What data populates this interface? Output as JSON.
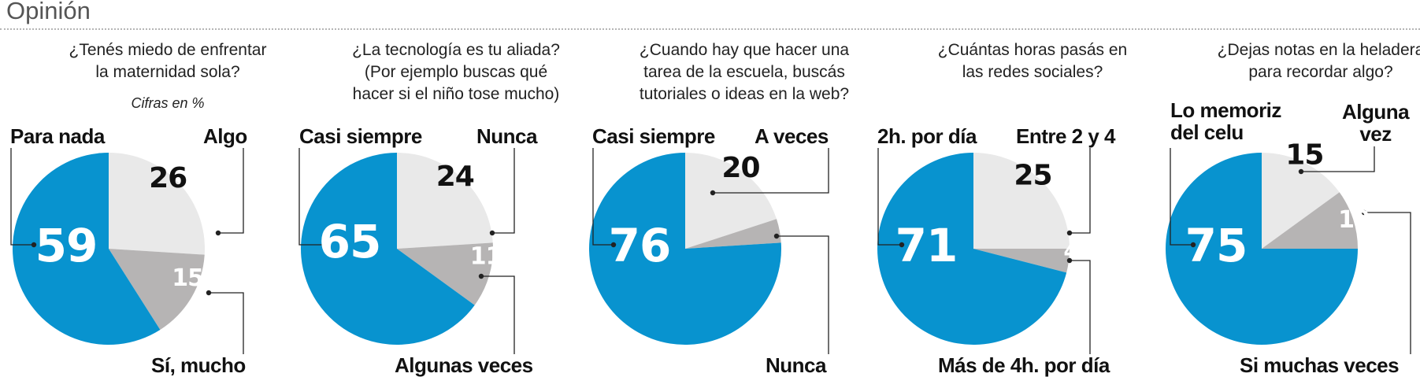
{
  "section_title": "Opinión",
  "colors": {
    "blue": "#0893cf",
    "light": "#e9e9e9",
    "mid": "#b6b4b4",
    "line": "#222222"
  },
  "chart_data": [
    {
      "type": "pie",
      "title_lines": [
        "¿Tenés miedo de enfrentar",
        "la maternidad sola?"
      ],
      "note": "Cifras en %",
      "slices": [
        {
          "label": "Para nada",
          "value": 59,
          "color": "blue"
        },
        {
          "label": "Algo",
          "value": 26,
          "color": "light"
        },
        {
          "label": "Sí, mucho",
          "value": 15,
          "color": "mid"
        }
      ]
    },
    {
      "type": "pie",
      "title_lines": [
        "¿La tecnología es tu aliada?",
        "(Por ejemplo buscas qué",
        "hacer si el niño tose mucho)"
      ],
      "slices": [
        {
          "label": "Casi siempre",
          "value": 65,
          "color": "blue"
        },
        {
          "label": "Nunca",
          "value": 24,
          "color": "light"
        },
        {
          "label": "Algunas veces",
          "value": 11,
          "color": "mid"
        }
      ]
    },
    {
      "type": "pie",
      "title_lines": [
        "¿Cuando hay que hacer una",
        "tarea de la escuela, buscás",
        "tutoriales o ideas en la web?"
      ],
      "slices": [
        {
          "label": "Casi siempre",
          "value": 76,
          "color": "blue"
        },
        {
          "label": "A veces",
          "value": 20,
          "color": "light"
        },
        {
          "label": "Nunca",
          "value": 4,
          "color": "mid"
        }
      ]
    },
    {
      "type": "pie",
      "title_lines": [
        "¿Cuántas horas pasás en",
        "las redes sociales?"
      ],
      "slices": [
        {
          "label": "2h. por día",
          "value": 71,
          "color": "blue"
        },
        {
          "label": "Entre 2 y 4",
          "value": 25,
          "color": "light"
        },
        {
          "label": "Más de 4h. por día",
          "value": 4,
          "color": "mid"
        }
      ]
    },
    {
      "type": "pie",
      "title_lines": [
        "¿Dejas notas en la heladera",
        "para recordar algo?"
      ],
      "slices": [
        {
          "label": "Lo memoriz\ndel celu",
          "value": 75,
          "color": "blue"
        },
        {
          "label": "Alguna\nvez",
          "value": 15,
          "color": "light"
        },
        {
          "label": "Si muchas veces",
          "value": 10,
          "color": "mid"
        }
      ]
    }
  ]
}
